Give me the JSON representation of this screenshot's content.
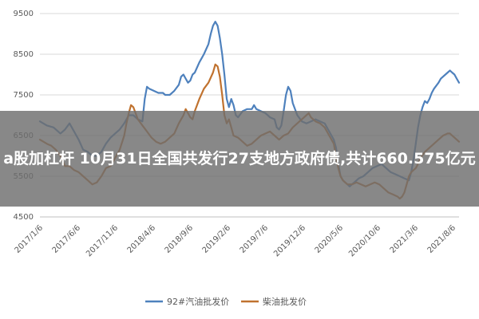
{
  "overlay": {
    "title": "a股加杠杆 10月31日全国共发行27支地方政府债,共计660.575亿元"
  },
  "chart_data": {
    "type": "line",
    "title": "",
    "xlabel": "",
    "ylabel": "",
    "ylim": [
      4500,
      9500
    ],
    "yticks": [
      "4500",
      "5500",
      "6500",
      "7500",
      "8500",
      "9500"
    ],
    "xticks": [
      "2017/1/6",
      "2017/6/6",
      "2017/11/6",
      "2018/4/6",
      "2018/9/6",
      "2019/2/6",
      "2019/7/6",
      "2019/12/6",
      "2020/5/6",
      "2020/10/6",
      "2021/3/6",
      "2021/8/6"
    ],
    "grid": true,
    "legend": "bottom",
    "series": [
      {
        "name": "92#汽油批发价",
        "color": "#4e81bd",
        "values": [
          [
            0,
            6850
          ],
          [
            3,
            6750
          ],
          [
            6,
            6700
          ],
          [
            9,
            6550
          ],
          [
            11,
            6650
          ],
          [
            13,
            6800
          ],
          [
            15,
            6600
          ],
          [
            17,
            6400
          ],
          [
            19,
            6150
          ],
          [
            21,
            6100
          ],
          [
            23,
            6000
          ],
          [
            25,
            6000
          ],
          [
            27,
            6100
          ],
          [
            29,
            6300
          ],
          [
            31,
            6450
          ],
          [
            33,
            6550
          ],
          [
            35,
            6650
          ],
          [
            37,
            6800
          ],
          [
            39,
            7000
          ],
          [
            41,
            7000
          ],
          [
            43,
            6900
          ],
          [
            45,
            6850
          ],
          [
            46,
            7400
          ],
          [
            47,
            7700
          ],
          [
            48,
            7650
          ],
          [
            50,
            7600
          ],
          [
            52,
            7550
          ],
          [
            54,
            7550
          ],
          [
            55,
            7500
          ],
          [
            57,
            7500
          ],
          [
            59,
            7600
          ],
          [
            61,
            7750
          ],
          [
            62,
            7950
          ],
          [
            63,
            8000
          ],
          [
            64,
            7900
          ],
          [
            65,
            7800
          ],
          [
            66,
            7850
          ],
          [
            67,
            8000
          ],
          [
            68,
            8050
          ],
          [
            70,
            8300
          ],
          [
            72,
            8500
          ],
          [
            74,
            8750
          ],
          [
            75,
            9000
          ],
          [
            76,
            9200
          ],
          [
            77,
            9300
          ],
          [
            78,
            9200
          ],
          [
            79,
            8900
          ],
          [
            80,
            8500
          ],
          [
            81,
            8000
          ],
          [
            82,
            7400
          ],
          [
            83,
            7200
          ],
          [
            84,
            7400
          ],
          [
            85,
            7250
          ],
          [
            86,
            7000
          ],
          [
            87,
            6950
          ],
          [
            89,
            7100
          ],
          [
            91,
            7150
          ],
          [
            93,
            7150
          ],
          [
            94,
            7250
          ],
          [
            95,
            7150
          ],
          [
            97,
            7100
          ],
          [
            99,
            7050
          ],
          [
            101,
            6950
          ],
          [
            103,
            6900
          ],
          [
            104,
            6700
          ],
          [
            105,
            6650
          ],
          [
            106,
            6750
          ],
          [
            107,
            7100
          ],
          [
            108,
            7500
          ],
          [
            109,
            7700
          ],
          [
            110,
            7600
          ],
          [
            111,
            7300
          ],
          [
            113,
            7000
          ],
          [
            115,
            6850
          ],
          [
            117,
            6800
          ],
          [
            119,
            6850
          ],
          [
            121,
            6900
          ],
          [
            123,
            6850
          ],
          [
            125,
            6800
          ],
          [
            127,
            6600
          ],
          [
            129,
            6400
          ],
          [
            130,
            6200
          ],
          [
            131,
            5800
          ],
          [
            132,
            5500
          ],
          [
            133,
            5400
          ],
          [
            134,
            5350
          ],
          [
            135,
            5300
          ],
          [
            136,
            5250
          ],
          [
            137,
            5300
          ],
          [
            138,
            5350
          ],
          [
            140,
            5450
          ],
          [
            142,
            5500
          ],
          [
            144,
            5600
          ],
          [
            146,
            5700
          ],
          [
            148,
            5750
          ],
          [
            150,
            5800
          ],
          [
            152,
            5700
          ],
          [
            154,
            5600
          ],
          [
            156,
            5550
          ],
          [
            158,
            5500
          ],
          [
            160,
            5450
          ],
          [
            162,
            5400
          ],
          [
            163,
            5600
          ],
          [
            164,
            5900
          ],
          [
            165,
            6300
          ],
          [
            166,
            6700
          ],
          [
            167,
            7000
          ],
          [
            168,
            7200
          ],
          [
            169,
            7350
          ],
          [
            170,
            7300
          ],
          [
            171,
            7400
          ],
          [
            172,
            7550
          ],
          [
            173,
            7650
          ],
          [
            175,
            7800
          ],
          [
            176,
            7900
          ],
          [
            178,
            8000
          ],
          [
            179,
            8050
          ],
          [
            180,
            8100
          ],
          [
            181,
            8050
          ],
          [
            182,
            8000
          ],
          [
            183,
            7900
          ],
          [
            184,
            7800
          ]
        ]
      },
      {
        "name": "柴油批发价",
        "color": "#c0722f",
        "values": [
          [
            0,
            6400
          ],
          [
            3,
            6300
          ],
          [
            5,
            6250
          ],
          [
            7,
            6150
          ],
          [
            9,
            6000
          ],
          [
            11,
            5750
          ],
          [
            13,
            5750
          ],
          [
            15,
            5650
          ],
          [
            17,
            5600
          ],
          [
            19,
            5500
          ],
          [
            21,
            5400
          ],
          [
            23,
            5300
          ],
          [
            25,
            5350
          ],
          [
            27,
            5500
          ],
          [
            29,
            5700
          ],
          [
            31,
            5750
          ],
          [
            33,
            5950
          ],
          [
            35,
            6150
          ],
          [
            37,
            6500
          ],
          [
            38,
            6800
          ],
          [
            39,
            7050
          ],
          [
            40,
            7250
          ],
          [
            41,
            7200
          ],
          [
            43,
            6900
          ],
          [
            45,
            6750
          ],
          [
            47,
            6600
          ],
          [
            49,
            6450
          ],
          [
            51,
            6350
          ],
          [
            53,
            6300
          ],
          [
            55,
            6350
          ],
          [
            57,
            6450
          ],
          [
            59,
            6550
          ],
          [
            61,
            6800
          ],
          [
            63,
            7000
          ],
          [
            64,
            7150
          ],
          [
            65,
            7050
          ],
          [
            66,
            6950
          ],
          [
            67,
            6900
          ],
          [
            68,
            7100
          ],
          [
            70,
            7400
          ],
          [
            72,
            7650
          ],
          [
            74,
            7800
          ],
          [
            76,
            8050
          ],
          [
            77,
            8250
          ],
          [
            78,
            8200
          ],
          [
            79,
            7950
          ],
          [
            80,
            7500
          ],
          [
            81,
            7000
          ],
          [
            82,
            6800
          ],
          [
            83,
            6900
          ],
          [
            84,
            6700
          ],
          [
            85,
            6500
          ],
          [
            87,
            6450
          ],
          [
            89,
            6350
          ],
          [
            91,
            6250
          ],
          [
            93,
            6300
          ],
          [
            95,
            6400
          ],
          [
            97,
            6500
          ],
          [
            99,
            6550
          ],
          [
            101,
            6600
          ],
          [
            103,
            6500
          ],
          [
            105,
            6400
          ],
          [
            107,
            6500
          ],
          [
            109,
            6550
          ],
          [
            111,
            6700
          ],
          [
            113,
            6800
          ],
          [
            115,
            6900
          ],
          [
            117,
            7000
          ],
          [
            118,
            7050
          ],
          [
            119,
            6950
          ],
          [
            121,
            6850
          ],
          [
            123,
            6800
          ],
          [
            125,
            6700
          ],
          [
            127,
            6500
          ],
          [
            129,
            6300
          ],
          [
            130,
            6000
          ],
          [
            131,
            5700
          ],
          [
            132,
            5500
          ],
          [
            133,
            5400
          ],
          [
            134,
            5350
          ],
          [
            135,
            5300
          ],
          [
            137,
            5300
          ],
          [
            139,
            5350
          ],
          [
            141,
            5300
          ],
          [
            143,
            5250
          ],
          [
            145,
            5300
          ],
          [
            147,
            5350
          ],
          [
            149,
            5300
          ],
          [
            151,
            5200
          ],
          [
            153,
            5100
          ],
          [
            155,
            5050
          ],
          [
            157,
            5000
          ],
          [
            158,
            4950
          ],
          [
            159,
            5000
          ],
          [
            160,
            5100
          ],
          [
            161,
            5300
          ],
          [
            162,
            5500
          ],
          [
            163,
            5600
          ],
          [
            164,
            5650
          ],
          [
            165,
            5700
          ],
          [
            166,
            5800
          ],
          [
            167,
            5950
          ],
          [
            169,
            6100
          ],
          [
            171,
            6200
          ],
          [
            173,
            6300
          ],
          [
            175,
            6400
          ],
          [
            177,
            6500
          ],
          [
            179,
            6550
          ],
          [
            180,
            6550
          ],
          [
            181,
            6500
          ],
          [
            182,
            6450
          ],
          [
            183,
            6400
          ],
          [
            184,
            6350
          ]
        ]
      }
    ]
  }
}
